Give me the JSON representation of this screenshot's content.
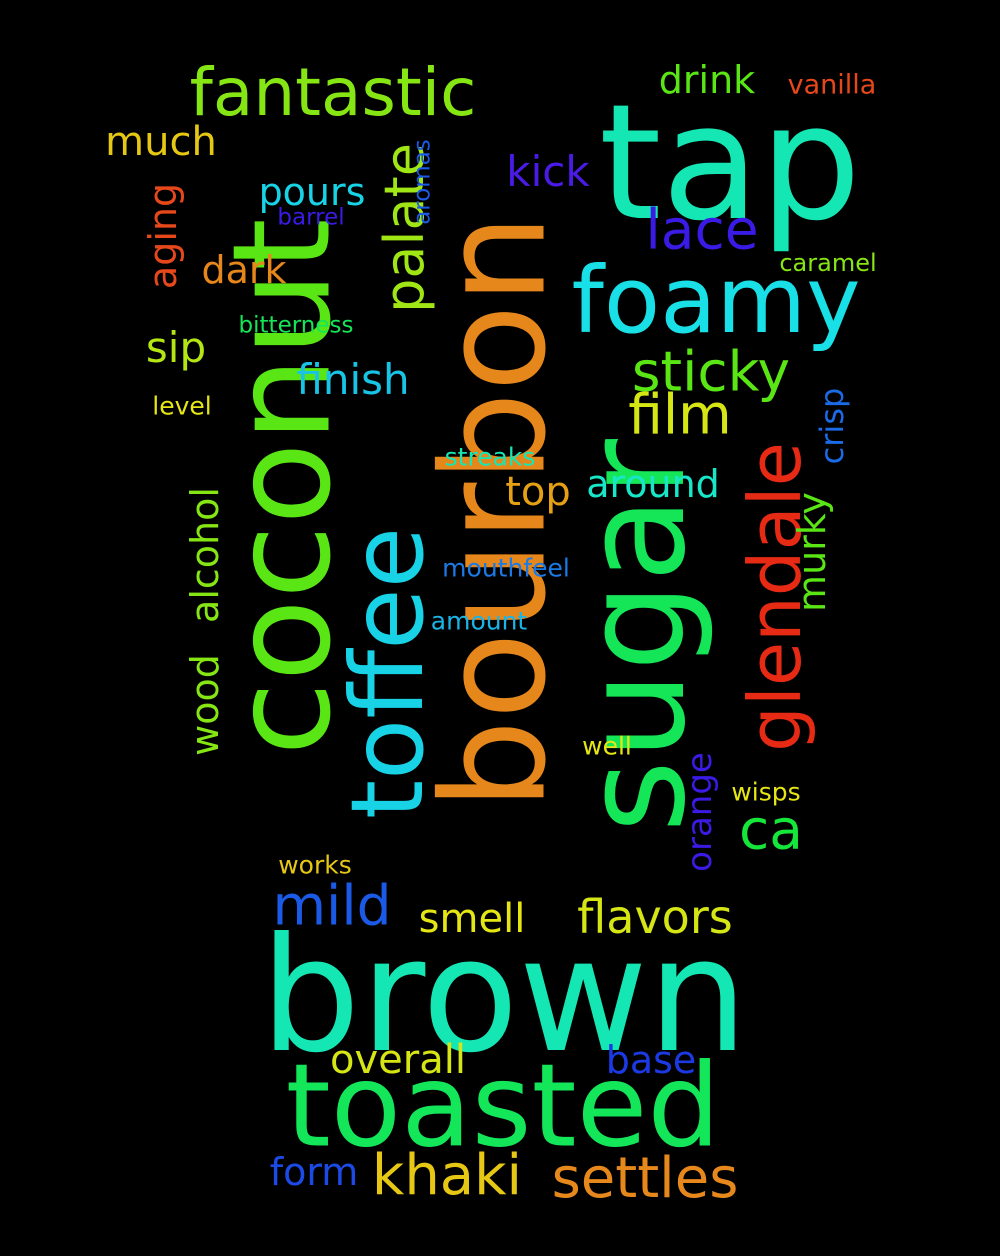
{
  "words": [
    {
      "text": "brown",
      "color": "#14e6b4"
    },
    {
      "text": "coconut",
      "color": "#5ae614"
    },
    {
      "text": "bourbon",
      "color": "#e6871b"
    },
    {
      "text": "sugar",
      "color": "#14e658"
    },
    {
      "text": "tap",
      "color": "#14e6b4"
    },
    {
      "text": "toasted",
      "color": "#14e65a"
    },
    {
      "text": "toffee",
      "color": "#18d2e6"
    },
    {
      "text": "foamy",
      "color": "#18e0e6"
    },
    {
      "text": "fantastic",
      "color": "#86e614"
    },
    {
      "text": "glendale",
      "color": "#e62a14"
    },
    {
      "text": "settles",
      "color": "#e6881b"
    },
    {
      "text": "khaki",
      "color": "#e6c814"
    },
    {
      "text": "sticky",
      "color": "#5ae614"
    },
    {
      "text": "film",
      "color": "#d6e614"
    },
    {
      "text": "palate",
      "color": "#a0e614"
    },
    {
      "text": "lace",
      "color": "#3a1be6"
    },
    {
      "text": "flavors",
      "color": "#d6e614"
    },
    {
      "text": "mild",
      "color": "#1b5ae6"
    },
    {
      "text": "ca",
      "color": "#14e63a"
    },
    {
      "text": "drink",
      "color": "#5ae614"
    },
    {
      "text": "kick",
      "color": "#4a1be6"
    },
    {
      "text": "pours",
      "color": "#18d2e6"
    },
    {
      "text": "finish",
      "color": "#18c4e6"
    },
    {
      "text": "sip",
      "color": "#b4e614"
    },
    {
      "text": "much",
      "color": "#e6c814"
    },
    {
      "text": "dark",
      "color": "#e6871b"
    },
    {
      "text": "smell",
      "color": "#e6e614"
    },
    {
      "text": "overall",
      "color": "#d6e614"
    },
    {
      "text": "base",
      "color": "#1b3ae6"
    },
    {
      "text": "form",
      "color": "#1b4ae6"
    },
    {
      "text": "top",
      "color": "#e6a014"
    },
    {
      "text": "around",
      "color": "#18e6c8"
    },
    {
      "text": "alcohol",
      "color": "#86e614"
    },
    {
      "text": "wood",
      "color": "#86e614"
    },
    {
      "text": "aging",
      "color": "#e6481b"
    },
    {
      "text": "murky",
      "color": "#5ae614"
    },
    {
      "text": "orange",
      "color": "#3a1be6"
    },
    {
      "text": "crisp",
      "color": "#1b6ae6"
    },
    {
      "text": "vanilla",
      "color": "#e6481b"
    },
    {
      "text": "caramel",
      "color": "#86e614"
    },
    {
      "text": "bitterness",
      "color": "#14e658"
    },
    {
      "text": "barrel",
      "color": "#3a1be6"
    },
    {
      "text": "aromas",
      "color": "#1b5ae6"
    },
    {
      "text": "level",
      "color": "#e6e614"
    },
    {
      "text": "streaks",
      "color": "#14e6b4"
    },
    {
      "text": "mouthfeel",
      "color": "#1b7ae6"
    },
    {
      "text": "amount",
      "color": "#1bb4e6"
    },
    {
      "text": "well",
      "color": "#e6e614"
    },
    {
      "text": "wisps",
      "color": "#e6e614"
    },
    {
      "text": "works",
      "color": "#e6c814"
    }
  ]
}
